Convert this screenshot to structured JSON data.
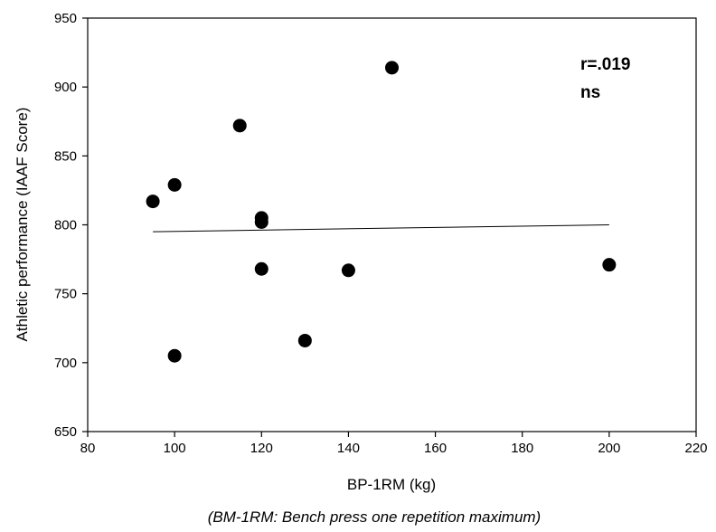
{
  "chart_data": {
    "type": "scatter",
    "xlabel": "BP-1RM (kg)",
    "ylabel": "Athletic performance (IAAF Score)",
    "caption": "(BM-1RM: Bench press one repetition maximum)",
    "xlim": [
      80,
      220
    ],
    "ylim": [
      650,
      950
    ],
    "xticks": [
      80,
      100,
      120,
      140,
      160,
      180,
      200,
      220
    ],
    "yticks": [
      650,
      700,
      750,
      800,
      850,
      900,
      950
    ],
    "grid": false,
    "points": [
      {
        "x": 95,
        "y": 817
      },
      {
        "x": 100,
        "y": 829
      },
      {
        "x": 100,
        "y": 705
      },
      {
        "x": 115,
        "y": 872
      },
      {
        "x": 120,
        "y": 805
      },
      {
        "x": 120,
        "y": 802
      },
      {
        "x": 120,
        "y": 768
      },
      {
        "x": 130,
        "y": 716
      },
      {
        "x": 140,
        "y": 767
      },
      {
        "x": 150,
        "y": 914
      },
      {
        "x": 200,
        "y": 771
      }
    ],
    "trendline": {
      "x": [
        95,
        200
      ],
      "y": [
        795,
        800
      ]
    },
    "annotations": [
      {
        "text": "r=.019"
      },
      {
        "text": "ns"
      }
    ],
    "colors": {
      "marker": "#000000",
      "line": "#000000",
      "axis": "#000000"
    }
  }
}
